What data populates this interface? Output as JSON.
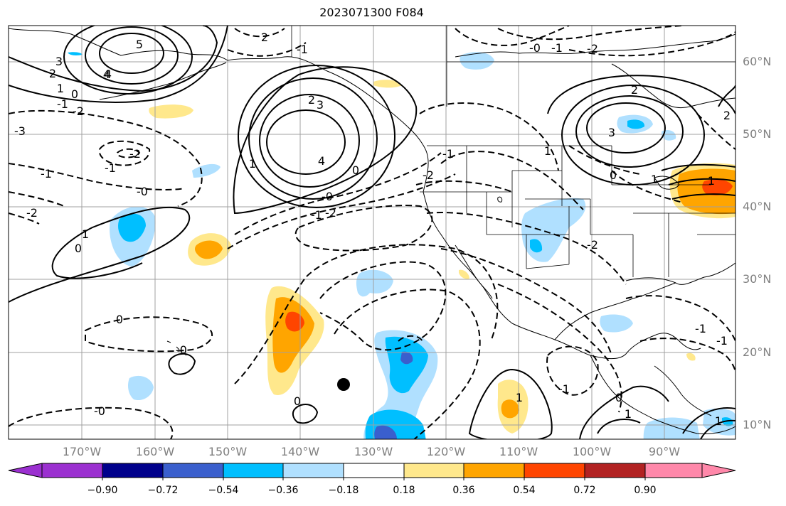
{
  "title": "2023071300 F084",
  "lat_labels": [
    "60°N",
    "50°N",
    "40°N",
    "30°N",
    "20°N",
    "10°N"
  ],
  "lon_labels": [
    "170°W",
    "160°W",
    "150°W",
    "140°W",
    "130°W",
    "120°W",
    "110°W",
    "100°W",
    "90°W"
  ],
  "colorbar": {
    "ticks": [
      "−0.90",
      "−0.72",
      "−0.54",
      "−0.36",
      "−0.18",
      "0.18",
      "0.36",
      "0.54",
      "0.72",
      "0.90"
    ],
    "colors": [
      "#9b30d0",
      "#00008b",
      "#3a5fcd",
      "#00bfff",
      "#b0e0ff",
      "#ffffff",
      "#ffe88c",
      "#ffa500",
      "#ff4500",
      "#b22222",
      "#ff88aa"
    ]
  },
  "contour_labels": [
    "5",
    "4",
    "3",
    "2",
    "1",
    "0",
    "-1",
    "-2",
    "-3",
    "4",
    "3",
    "2",
    "1",
    "0",
    "-0",
    "-1",
    "-2",
    "-0",
    "2",
    "4",
    "-2",
    "1",
    "-1",
    "0",
    "1",
    "-2",
    "-1",
    "-1",
    "0",
    "-0",
    "-2",
    "3",
    "2",
    "1",
    "0",
    "-0",
    "-1",
    "-2",
    "-2",
    "1",
    "-1",
    "1",
    "0",
    "0",
    "-0",
    "-1",
    "-1",
    "1",
    "-1",
    "1",
    "2"
  ]
}
